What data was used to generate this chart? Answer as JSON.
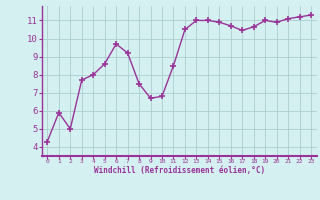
{
  "x": [
    0,
    1,
    2,
    3,
    4,
    5,
    6,
    7,
    8,
    9,
    10,
    11,
    12,
    13,
    14,
    15,
    16,
    17,
    18,
    19,
    20,
    21,
    22,
    23
  ],
  "y": [
    4.3,
    5.9,
    5.0,
    7.7,
    8.0,
    8.6,
    9.7,
    9.2,
    7.5,
    6.7,
    6.8,
    8.5,
    10.5,
    11.0,
    11.0,
    10.9,
    10.7,
    10.45,
    10.65,
    11.0,
    10.9,
    11.1,
    11.2,
    11.3
  ],
  "line_color": "#993399",
  "marker": "+",
  "markersize": 4,
  "markeredgewidth": 1.2,
  "linewidth": 1.0,
  "bg_color": "#d5f0f0",
  "grid_color": "#aacece",
  "xlabel": "Windchill (Refroidissement éolien,°C)",
  "xlabel_color": "#993399",
  "tick_color": "#993399",
  "spine_color": "#993399",
  "xlim": [
    -0.5,
    23.5
  ],
  "ylim": [
    3.5,
    11.8
  ],
  "yticks": [
    4,
    5,
    6,
    7,
    8,
    9,
    10,
    11
  ],
  "xticks": [
    0,
    1,
    2,
    3,
    4,
    5,
    6,
    7,
    8,
    9,
    10,
    11,
    12,
    13,
    14,
    15,
    16,
    17,
    18,
    19,
    20,
    21,
    22,
    23
  ],
  "xtick_labels": [
    "0",
    "1",
    "2",
    "3",
    "4",
    "5",
    "6",
    "7",
    "8",
    "9",
    "10",
    "11",
    "12",
    "13",
    "14",
    "15",
    "16",
    "17",
    "18",
    "19",
    "20",
    "21",
    "22",
    "23"
  ]
}
